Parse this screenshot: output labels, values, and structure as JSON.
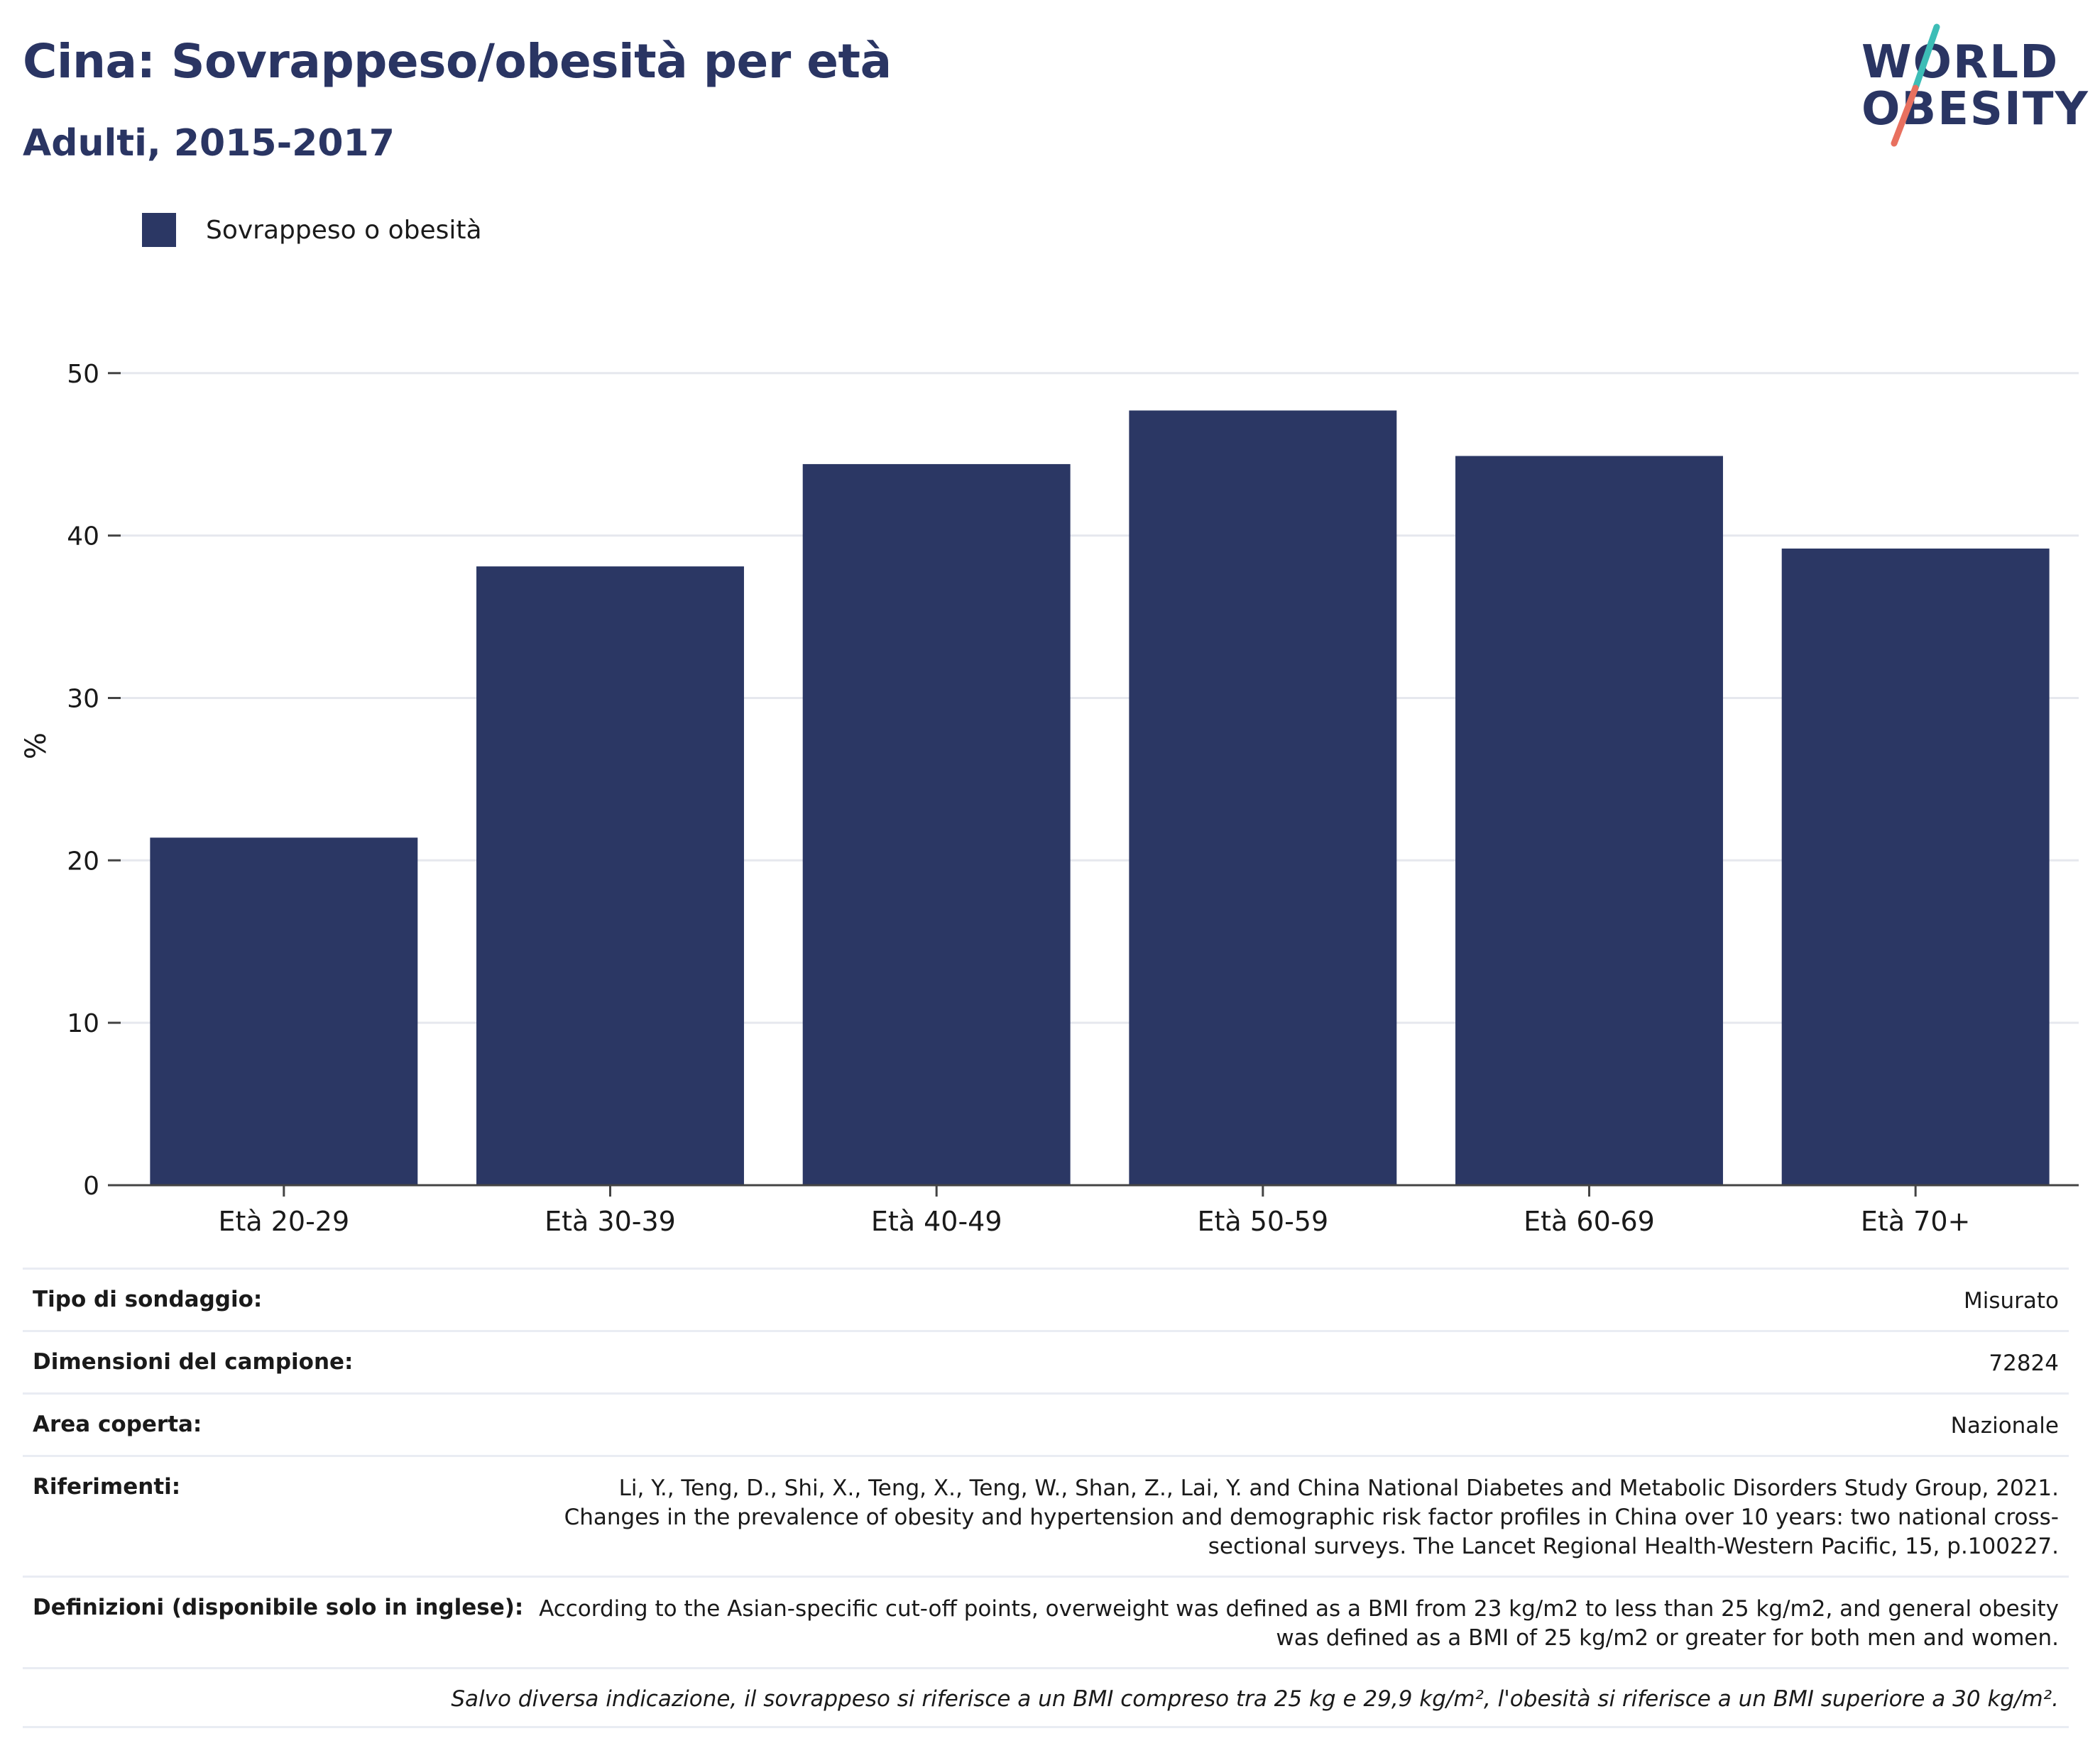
{
  "header": {
    "title": "Cina: Sovrappeso/obesità per età",
    "subtitle": "Adulti, 2015-2017"
  },
  "logo": {
    "line1": "WORLD",
    "line2": "OBESITY",
    "accent_teal": "#3dbdb6",
    "accent_coral": "#e8705f"
  },
  "colors": {
    "bar": "#2b3764",
    "title": "#2a3563",
    "grid": "#e6e8ee",
    "axis": "#444444"
  },
  "chart_data": {
    "type": "bar",
    "categories": [
      "Età 20-29",
      "Età 30-39",
      "Età 40-49",
      "Età 50-59",
      "Età 60-69",
      "Età 70+"
    ],
    "series": [
      {
        "name": "Sovrappeso o obesità",
        "values": [
          21.4,
          38.1,
          44.4,
          47.7,
          44.9,
          39.2
        ]
      }
    ],
    "ylabel": "%",
    "ylim": [
      0,
      52
    ],
    "yticks": [
      0,
      10,
      20,
      30,
      40,
      50
    ],
    "grid": true,
    "legend": "top-left"
  },
  "info": {
    "rows": [
      {
        "key": "Tipo di sondaggio:",
        "value": "Misurato"
      },
      {
        "key": "Dimensioni del campione:",
        "value": "72824"
      },
      {
        "key": "Area coperta:",
        "value": "Nazionale"
      },
      {
        "key": "Riferimenti:",
        "value": "Li, Y., Teng, D., Shi, X., Teng, X., Teng, W., Shan, Z., Lai, Y. and China National Diabetes and Metabolic Disorders Study Group, 2021. Changes in the prevalence of obesity and hypertension and demographic risk factor profiles in China over 10 years: two national cross-sectional surveys. The Lancet Regional Health-Western Pacific, 15, p.100227."
      },
      {
        "key": "Definizioni (disponibile solo in inglese):",
        "value": "According to the Asian-specific cut-off points, overweight was defined as a BMI from 23 kg/m2 to less than 25 kg/m2, and general obesity was defined as a BMI of 25 kg/m2 or greater for both men and women."
      }
    ],
    "note": "Salvo diversa indicazione, il sovrappeso si riferisce a un BMI compreso tra 25 kg e 29,9 kg/m², l'obesità si riferisce a un BMI superiore a 30 kg/m²."
  }
}
